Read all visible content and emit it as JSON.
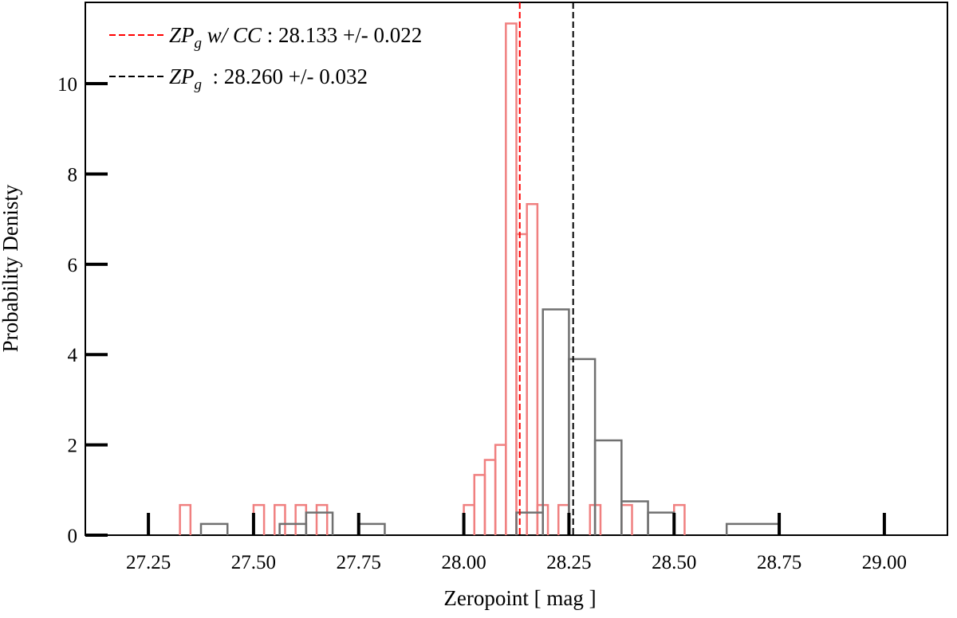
{
  "chart_data": {
    "type": "histogram",
    "xlabel": "Zeropoint [ mag ]",
    "ylabel": "Probability Denisty",
    "xlim": [
      27.1,
      29.15
    ],
    "ylim": [
      0,
      11.8
    ],
    "x_ticks": [
      "27.25",
      "27.50",
      "27.75",
      "28.00",
      "28.25",
      "28.50",
      "28.75",
      "29.00"
    ],
    "x_tick_values": [
      27.25,
      27.5,
      27.75,
      28.0,
      28.25,
      28.5,
      28.75,
      29.0
    ],
    "y_ticks": [
      "0",
      "2",
      "4",
      "6",
      "8",
      "10"
    ],
    "y_tick_values": [
      0,
      2,
      4,
      6,
      8,
      10
    ],
    "grid": false,
    "legend_position": "top-left",
    "series": [
      {
        "name_parts": [
          "ZP",
          "g",
          "w/ CC",
          " : 28.133 +/- 0.022"
        ],
        "color": "#f08080",
        "line_color": "#ff0000",
        "line_x": 28.133,
        "bins": [
          [
            27.325,
            27.35,
            0.667
          ],
          [
            27.5,
            27.525,
            0.667
          ],
          [
            27.55,
            27.575,
            0.667
          ],
          [
            27.6,
            27.625,
            0.667
          ],
          [
            27.65,
            27.675,
            0.667
          ],
          [
            28.0,
            28.025,
            0.667
          ],
          [
            28.025,
            28.05,
            1.333
          ],
          [
            28.05,
            28.075,
            1.667
          ],
          [
            28.075,
            28.1,
            2.0
          ],
          [
            28.1,
            28.125,
            11.333
          ],
          [
            28.125,
            28.15,
            6.667
          ],
          [
            28.15,
            28.175,
            7.333
          ],
          [
            28.175,
            28.2,
            0.667
          ],
          [
            28.225,
            28.25,
            0.667
          ],
          [
            28.3,
            28.325,
            0.667
          ],
          [
            28.375,
            28.4,
            0.667
          ],
          [
            28.5,
            28.525,
            0.667
          ]
        ]
      },
      {
        "name_parts": [
          "ZP",
          "g",
          "",
          " : 28.260 +/- 0.032"
        ],
        "color": "#707070",
        "line_color": "#000000",
        "line_x": 28.26,
        "bins": [
          [
            27.375,
            27.438,
            0.25
          ],
          [
            27.562,
            27.625,
            0.25
          ],
          [
            27.625,
            27.688,
            0.5
          ],
          [
            27.75,
            27.812,
            0.25
          ],
          [
            28.125,
            28.188,
            0.5
          ],
          [
            28.188,
            28.25,
            5.0
          ],
          [
            28.25,
            28.312,
            3.9
          ],
          [
            28.312,
            28.375,
            2.1
          ],
          [
            28.375,
            28.438,
            0.75
          ],
          [
            28.438,
            28.5,
            0.5
          ],
          [
            28.625,
            28.75,
            0.25
          ]
        ]
      }
    ]
  }
}
